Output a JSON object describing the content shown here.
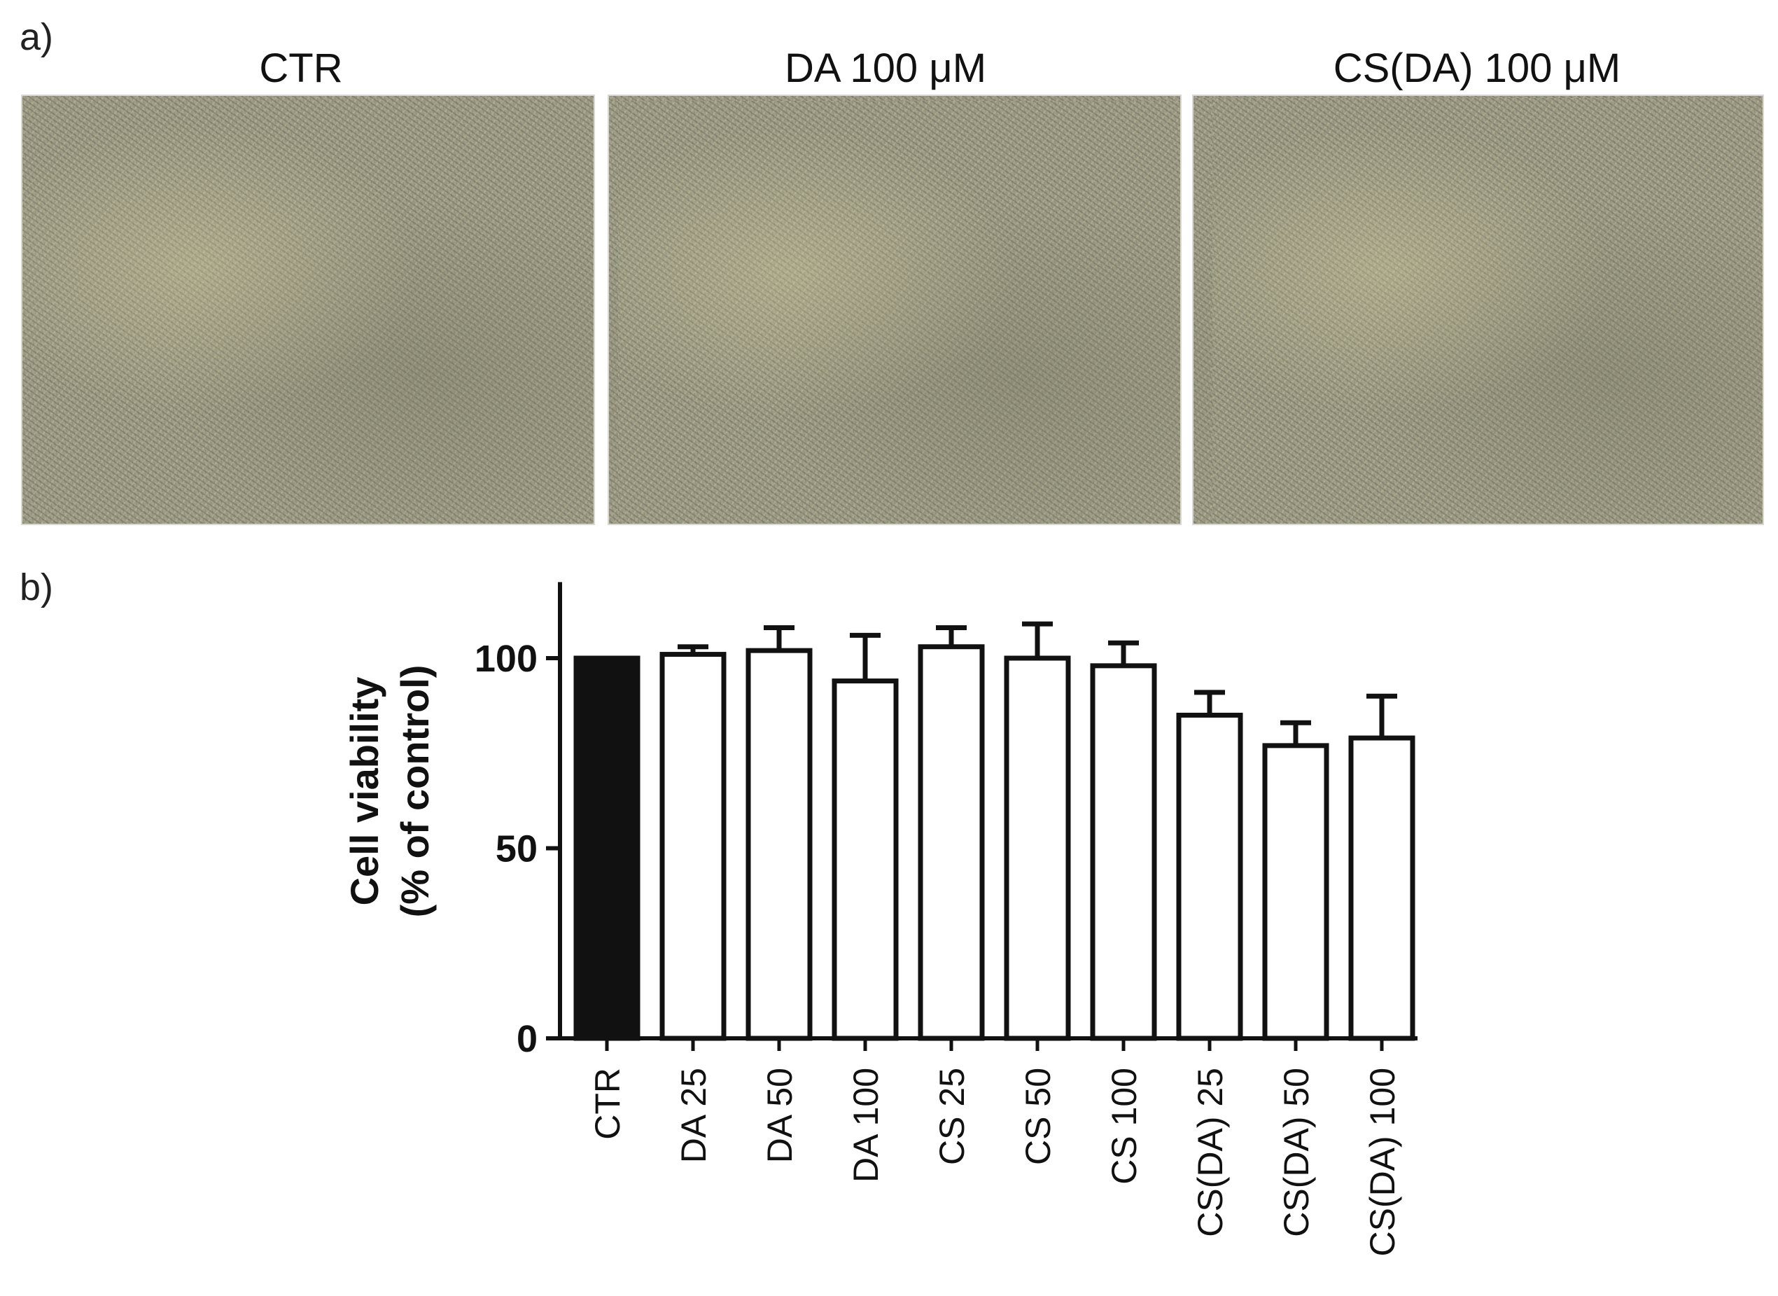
{
  "panel_a": {
    "label": "a)",
    "images": [
      {
        "title": "CTR"
      },
      {
        "title": "DA 100 μM"
      },
      {
        "title": "CS(DA) 100 μM"
      }
    ]
  },
  "panel_b": {
    "label": "b)"
  },
  "chart_data": {
    "type": "bar",
    "title": "",
    "xlabel": "",
    "ylabel_line1": "Cell viability",
    "ylabel_line2": "(% of control)",
    "categories": [
      "CTR",
      "DA 25",
      "DA 50",
      "DA 100",
      "CS 25",
      "CS 50",
      "CS 100",
      "CS(DA) 25",
      "CS(DA) 50",
      "CS(DA) 100"
    ],
    "values": [
      100,
      101,
      102,
      94,
      103,
      100,
      98,
      85,
      77,
      79
    ],
    "errors": [
      0,
      2,
      6,
      12,
      5,
      9,
      6,
      6,
      6,
      11
    ],
    "bar_fill": [
      "#111111",
      "#ffffff",
      "#ffffff",
      "#ffffff",
      "#ffffff",
      "#ffffff",
      "#ffffff",
      "#ffffff",
      "#ffffff",
      "#ffffff"
    ],
    "yticks": [
      0,
      50,
      100
    ],
    "ylim": [
      0,
      120
    ],
    "grid": false,
    "legend": "none"
  }
}
